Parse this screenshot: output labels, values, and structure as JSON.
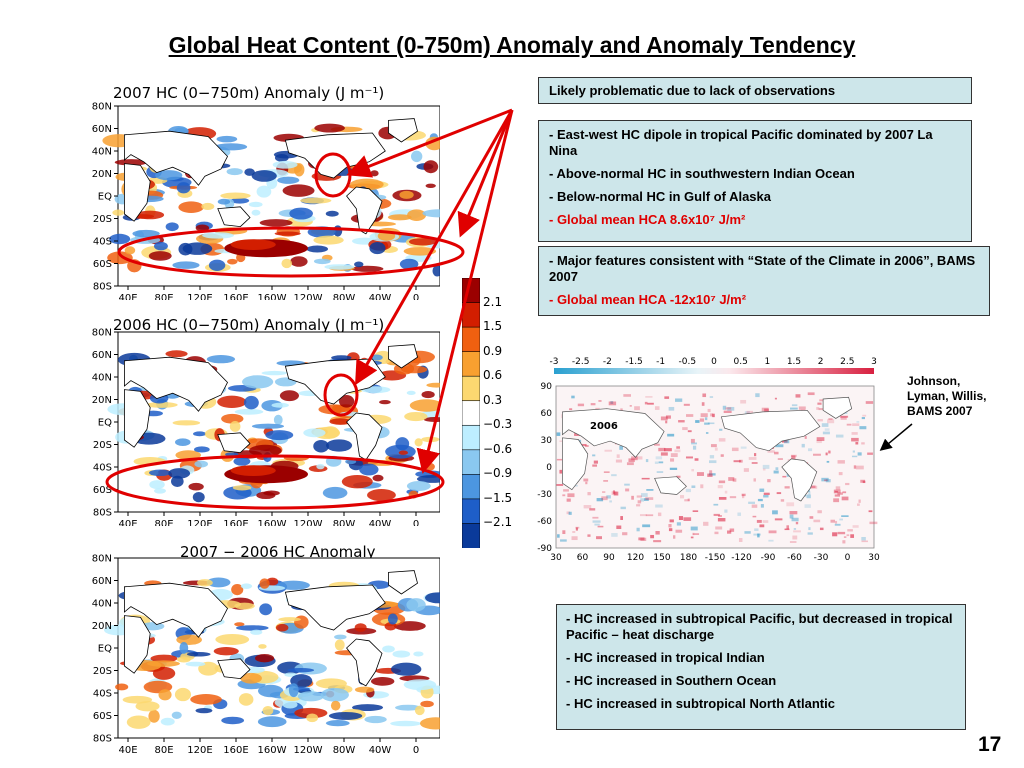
{
  "slide": {
    "title": "Global Heat Content (0-750m) Anomaly and Anomaly Tendency",
    "page_number": "17"
  },
  "maps": [
    {
      "title": "2007 HC (0−750m) Anomaly (J m⁻¹)"
    },
    {
      "title": "2006 HC (0−750m) Anomaly (J m⁻¹)"
    },
    {
      "title": "2007 − 2006 HC Anomaly"
    }
  ],
  "axes": {
    "lat_labels": [
      "80N",
      "60N",
      "40N",
      "20N",
      "EQ",
      "20S",
      "40S",
      "60S",
      "80S"
    ],
    "lon_labels": [
      "40E",
      "80E",
      "120E",
      "160E",
      "160W",
      "120W",
      "80W",
      "40W",
      "0"
    ]
  },
  "colorbar": {
    "labels": [
      "2.1",
      "1.5",
      "0.9",
      "0.6",
      "0.3",
      "−0.3",
      "−0.6",
      "−0.9",
      "−1.5",
      "−2.1"
    ],
    "colors": [
      "#9b0000",
      "#d21e00",
      "#f06010",
      "#f8a030",
      "#fcd870",
      "#ffffff",
      "#bdeeff",
      "#8ac8f0",
      "#4c96e0",
      "#1e5ec8",
      "#0a3a9a"
    ]
  },
  "notes": {
    "header": "Likely problematic due to lack of observations",
    "box1": [
      "-  East-west HC dipole in tropical Pacific dominated by 2007 La Nina",
      "- Above-normal HC in southwestern Indian Ocean",
      "-  Below-normal HC in Gulf of Alaska",
      "-  Global mean HCA 8.6x10⁷ J/m²"
    ],
    "box2": [
      "-  Major features consistent with “State of the Climate in 2006”, BAMS 2007",
      "-  Global mean HCA -12x10⁷ J/m²"
    ],
    "box3": [
      "-  HC increased in subtropical Pacific, but decreased in tropical Pacific – heat discharge",
      "-  HC increased in tropical Indian",
      "-  HC increased in Southern Ocean",
      "-  HC increased in subtropical North Atlantic"
    ]
  },
  "inset": {
    "year_label": "2006",
    "scale_labels": [
      "-3",
      "-2.5",
      "-2",
      "-1.5",
      "-1",
      "-0.5",
      "0",
      "0.5",
      "1",
      "1.5",
      "2",
      "2.5",
      "3"
    ],
    "lat_labels": [
      "90",
      "60",
      "30",
      "0",
      "-30",
      "-60",
      "-90"
    ],
    "lon_labels": [
      "30",
      "60",
      "90",
      "120",
      "150",
      "180",
      "-150",
      "-120",
      "-90",
      "-60",
      "-30",
      "0",
      "30"
    ],
    "citation": [
      "Johnson,",
      "Lyman, Willis,",
      "BAMS 2007"
    ]
  },
  "colors": {
    "annotation_red": "#e00000",
    "box_fill": "#cde6ea"
  }
}
